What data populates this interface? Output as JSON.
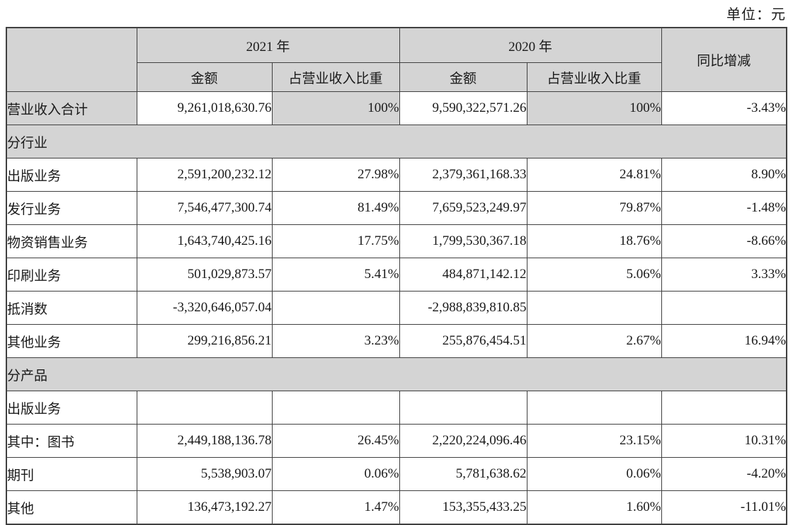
{
  "unit_label": "单位：元",
  "table": {
    "headers": {
      "year_2021": "2021 年",
      "year_2020": "2020 年",
      "amount_2021": "金额",
      "pct_2021": "占营业收入比重",
      "amount_2020": "金额",
      "pct_2020": "占营业收入比重",
      "yoy_change": "同比增减"
    },
    "rows": [
      {
        "type": "data",
        "shaded": true,
        "label": "营业收入合计",
        "a2021": "9,261,018,630.76",
        "p2021": "100%",
        "a2020": "9,590,322,571.26",
        "p2020": "100%",
        "yoy": "-3.43%"
      },
      {
        "type": "section",
        "label": "分行业"
      },
      {
        "type": "data",
        "label": "出版业务",
        "a2021": "2,591,200,232.12",
        "p2021": "27.98%",
        "a2020": "2,379,361,168.33",
        "p2020": "24.81%",
        "yoy": "8.90%"
      },
      {
        "type": "data",
        "label": "发行业务",
        "a2021": "7,546,477,300.74",
        "p2021": "81.49%",
        "a2020": "7,659,523,249.97",
        "p2020": "79.87%",
        "yoy": "-1.48%"
      },
      {
        "type": "data",
        "label": "物资销售业务",
        "a2021": "1,643,740,425.16",
        "p2021": "17.75%",
        "a2020": "1,799,530,367.18",
        "p2020": "18.76%",
        "yoy": "-8.66%"
      },
      {
        "type": "data",
        "label": "印刷业务",
        "a2021": "501,029,873.57",
        "p2021": "5.41%",
        "a2020": "484,871,142.12",
        "p2020": "5.06%",
        "yoy": "3.33%"
      },
      {
        "type": "data",
        "label": "抵消数",
        "a2021": "-3,320,646,057.04",
        "p2021": "",
        "a2020": "-2,988,839,810.85",
        "p2020": "",
        "yoy": ""
      },
      {
        "type": "data",
        "label": "其他业务",
        "a2021": "299,216,856.21",
        "p2021": "3.23%",
        "a2020": "255,876,454.51",
        "p2020": "2.67%",
        "yoy": "16.94%"
      },
      {
        "type": "section",
        "label": "分产品"
      },
      {
        "type": "data",
        "label": "出版业务",
        "a2021": "",
        "p2021": "",
        "a2020": "",
        "p2020": "",
        "yoy": ""
      },
      {
        "type": "data",
        "label": "其中：图书",
        "a2021": "2,449,188,136.78",
        "p2021": "26.45%",
        "a2020": "2,220,224,096.46",
        "p2020": "23.15%",
        "yoy": "10.31%"
      },
      {
        "type": "data",
        "label": "期刊",
        "a2021": "5,538,903.07",
        "p2021": "0.06%",
        "a2020": "5,781,638.62",
        "p2020": "0.06%",
        "yoy": "-4.20%"
      },
      {
        "type": "data",
        "label": "其他",
        "a2021": "136,473,192.27",
        "p2021": "1.47%",
        "a2020": "153,355,433.25",
        "p2020": "1.60%",
        "yoy": "-11.01%"
      }
    ],
    "colors": {
      "shaded_bg": "#d4d4d4",
      "border": "#404040",
      "text": "#1a1a1a"
    }
  }
}
